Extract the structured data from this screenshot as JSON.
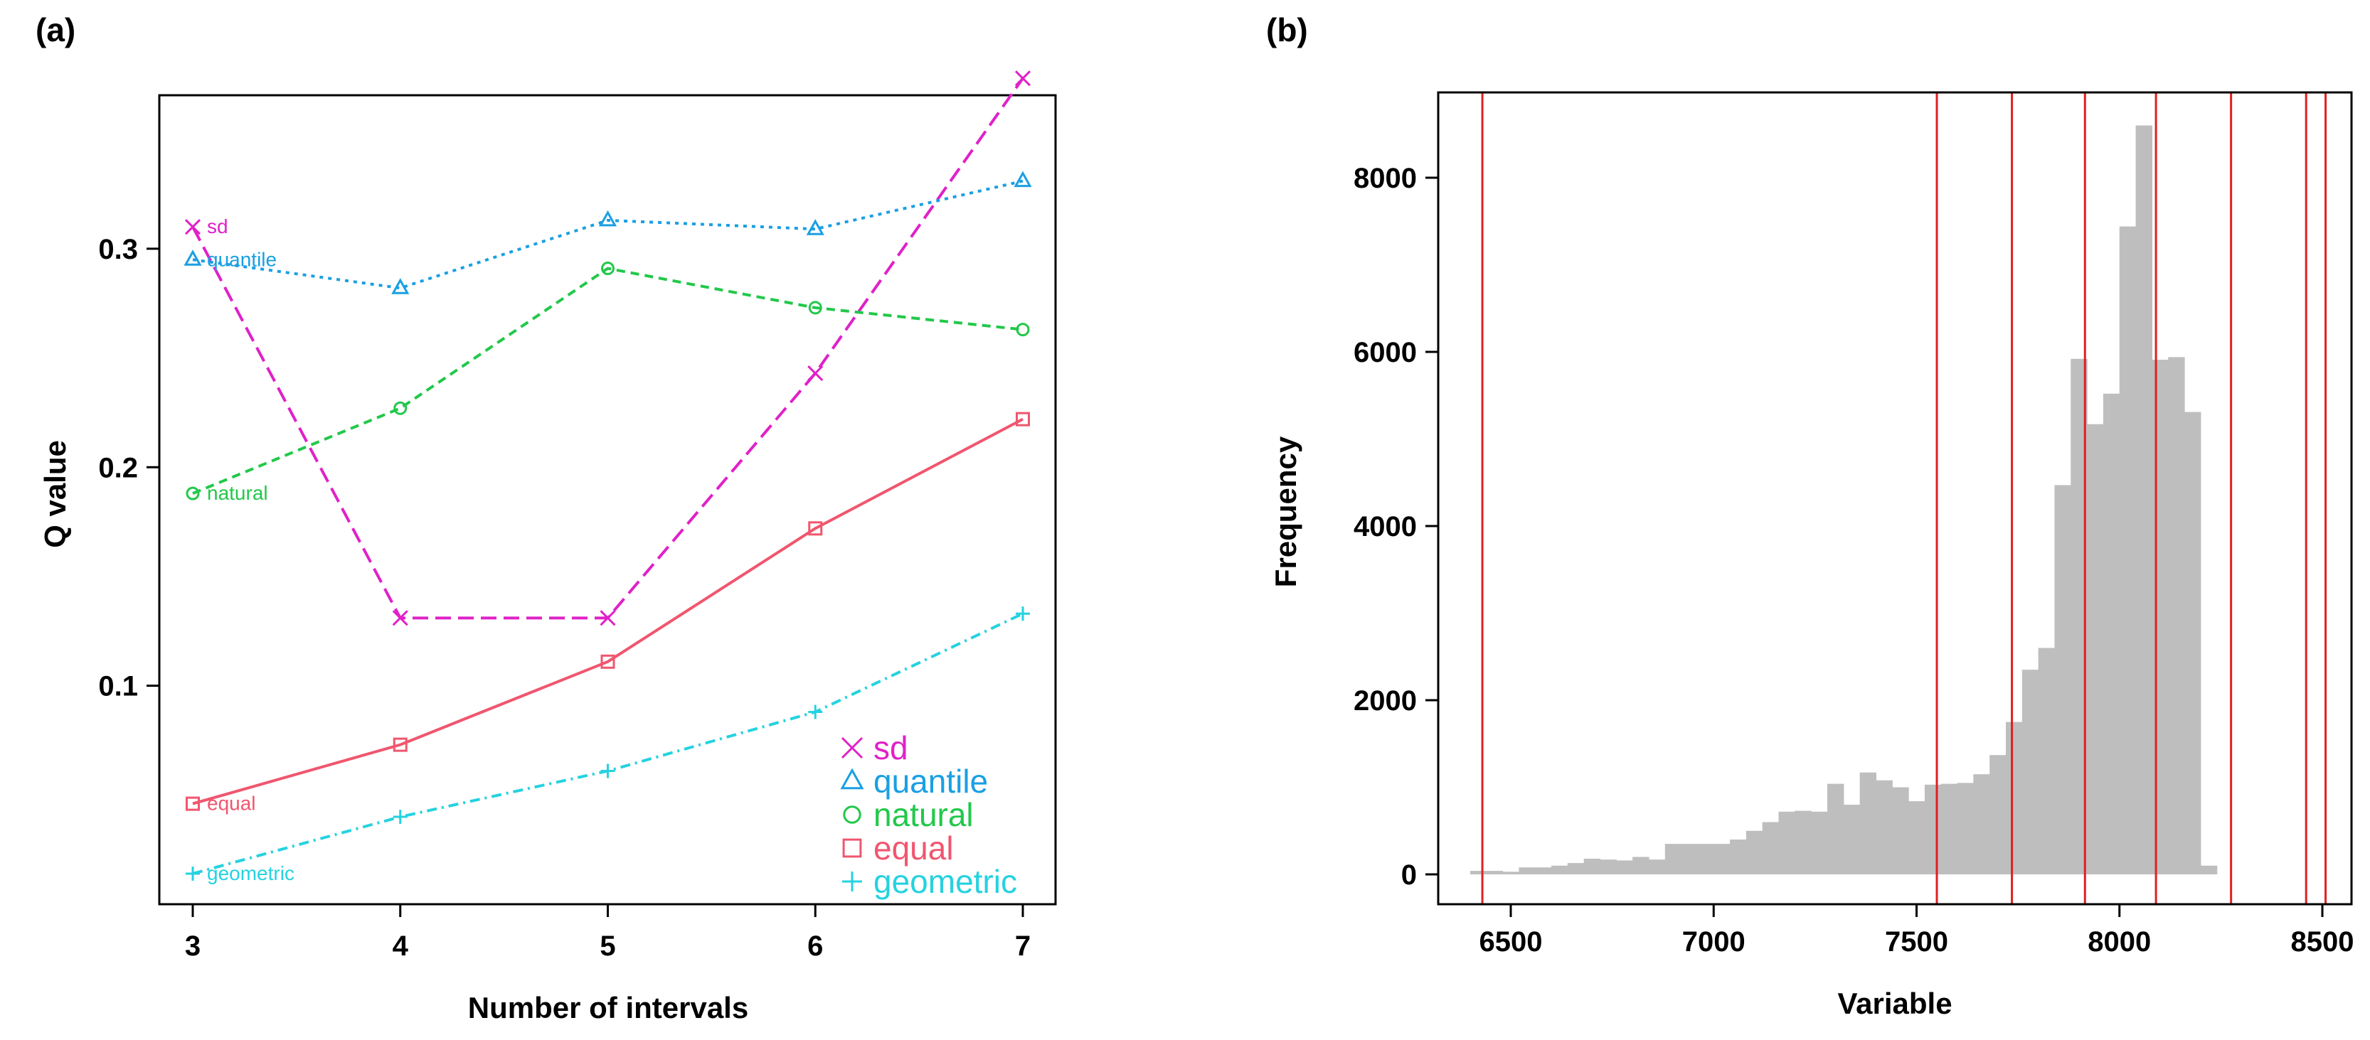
{
  "chart_data": [
    {
      "panel_label": "(a)",
      "type": "line",
      "xlabel": "Number of intervals",
      "ylabel": "Q value",
      "x": [
        3,
        4,
        5,
        6,
        7
      ],
      "xlim": [
        3,
        7
      ],
      "ylim": [
        0.0,
        0.38
      ],
      "xticks": [
        "3",
        "4",
        "5",
        "6",
        "7"
      ],
      "yticks": [
        {
          "value": 0.1,
          "label": "0.1"
        },
        {
          "value": 0.2,
          "label": "0.2"
        },
        {
          "value": 0.3,
          "label": "0.3"
        }
      ],
      "legend_position": "bottom-right",
      "series": [
        {
          "name": "sd",
          "color": "#e021c8",
          "marker": "x",
          "dash": "dashed",
          "values": [
            0.31,
            0.131,
            0.131,
            0.243,
            0.378
          ]
        },
        {
          "name": "quantile",
          "color": "#1a9fe3",
          "marker": "triangle",
          "dash": "dotted",
          "values": [
            0.295,
            0.282,
            0.313,
            0.309,
            0.331
          ]
        },
        {
          "name": "natural",
          "color": "#22c84a",
          "marker": "circle",
          "dash": "short-dash",
          "values": [
            0.188,
            0.227,
            0.291,
            0.273,
            0.263
          ]
        },
        {
          "name": "equal",
          "color": "#f0566e",
          "marker": "square",
          "dash": "solid",
          "values": [
            0.046,
            0.073,
            0.111,
            0.172,
            0.222
          ]
        },
        {
          "name": "geometric",
          "color": "#25d2e0",
          "marker": "plus",
          "dash": "dotdash",
          "values": [
            0.014,
            0.04,
            0.061,
            0.088,
            0.133
          ]
        }
      ]
    },
    {
      "panel_label": "(b)",
      "type": "histogram",
      "xlabel": "Variable",
      "ylabel": "Frequency",
      "xlim": [
        6400,
        8550
      ],
      "ylim": [
        0,
        8600
      ],
      "xticks": [
        6500,
        7000,
        7500,
        8000,
        8500
      ],
      "yticks": [
        0,
        2000,
        4000,
        6000,
        8000
      ],
      "bin_start": 6400,
      "bin_width": 40,
      "counts": [
        40,
        40,
        30,
        80,
        80,
        100,
        130,
        180,
        170,
        160,
        200,
        170,
        350,
        350,
        350,
        350,
        400,
        500,
        600,
        720,
        730,
        720,
        1040,
        800,
        1170,
        1080,
        1000,
        840,
        1030,
        1040,
        1050,
        1150,
        1370,
        1750,
        2350,
        2600,
        4470,
        5920,
        5170,
        5520,
        7440,
        8600,
        5910,
        5940,
        5310,
        100
      ],
      "bar_color": "#bebebe",
      "break_lines": [
        6430,
        7550,
        7735,
        7915,
        8090,
        8275,
        8460,
        8508
      ],
      "break_color": "#e02020"
    }
  ]
}
